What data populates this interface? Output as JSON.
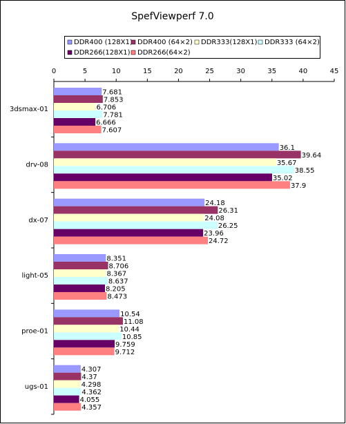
{
  "chart_data": {
    "type": "hbar",
    "title": "SpefViewperf 7.0",
    "categories": [
      "3dsmax-01",
      "drv-08",
      "dx-07",
      "light-05",
      "proe-01",
      "ugs-01"
    ],
    "series": [
      {
        "name": "DDR400 (128X1)",
        "color": "#9999ff",
        "values": [
          7.681,
          36.1,
          24.18,
          8.351,
          10.54,
          4.307
        ]
      },
      {
        "name": "DDR400 (64×2)",
        "color": "#993366",
        "values": [
          7.853,
          39.64,
          26.31,
          8.706,
          11.08,
          4.37
        ]
      },
      {
        "name": "DDR333(128X1)",
        "color": "#ffffcc",
        "values": [
          6.706,
          35.67,
          24.08,
          8.367,
          10.44,
          4.298
        ]
      },
      {
        "name": "DDR333 (64×2)",
        "color": "#ccffff",
        "values": [
          7.781,
          38.55,
          26.25,
          8.637,
          10.85,
          4.362
        ]
      },
      {
        "name": "DDR266(128X1)",
        "color": "#660066",
        "values": [
          6.666,
          35.02,
          23.96,
          8.205,
          9.759,
          4.055
        ]
      },
      {
        "name": "DDR266(64×2)",
        "color": "#ff8080",
        "values": [
          7.607,
          37.9,
          24.72,
          8.473,
          9.712,
          4.357
        ]
      }
    ],
    "xlim": [
      0,
      45
    ],
    "xticks": [
      0,
      5,
      10,
      15,
      20,
      25,
      30,
      35,
      40,
      45
    ],
    "legend": "top",
    "grid": false
  }
}
